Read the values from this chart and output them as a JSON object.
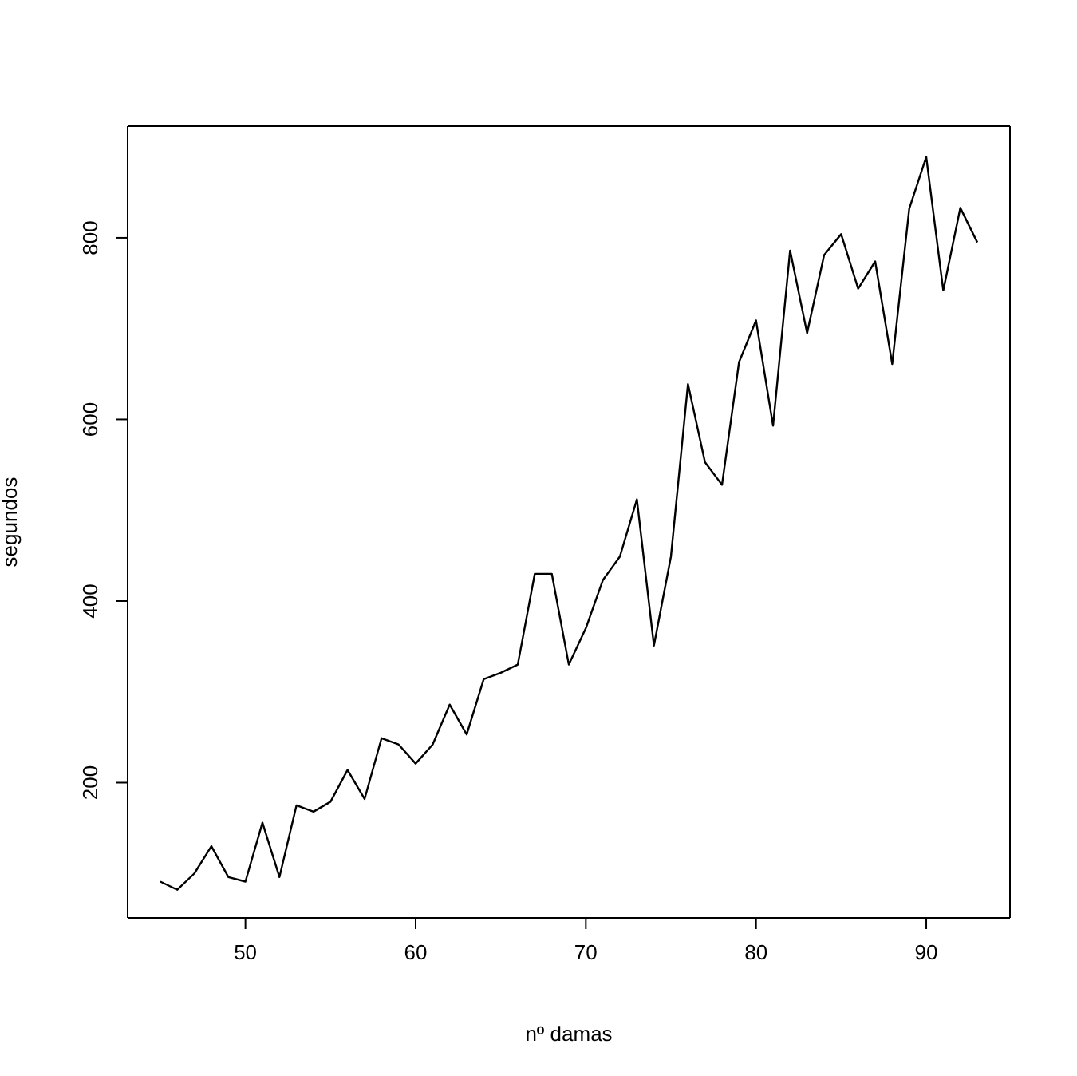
{
  "chart_data": {
    "type": "line",
    "xlabel": "nº damas",
    "ylabel": "segundos",
    "x": [
      45,
      46,
      47,
      48,
      49,
      50,
      51,
      52,
      53,
      54,
      55,
      56,
      57,
      58,
      59,
      60,
      61,
      62,
      63,
      64,
      65,
      66,
      67,
      68,
      69,
      70,
      71,
      72,
      73,
      74,
      75,
      76,
      77,
      78,
      79,
      80,
      81,
      82,
      83,
      84,
      85,
      86,
      87,
      88,
      89,
      90,
      91,
      92,
      93
    ],
    "series": [
      {
        "color": "#000000",
        "values": [
          91,
          82,
          100,
          130,
          96,
          91,
          156,
          96,
          175,
          168,
          179,
          214,
          182,
          249,
          242,
          221,
          242,
          286,
          253,
          314,
          321,
          330,
          430,
          430,
          330,
          370,
          423,
          449,
          512,
          351,
          449,
          639,
          553,
          528,
          663,
          709,
          593,
          786,
          695,
          781,
          804,
          744,
          774,
          661,
          832,
          889,
          742,
          833,
          795
        ]
      }
    ],
    "xlim": [
      43.08,
      94.92
    ],
    "ylim": [
      51,
      923
    ],
    "xticks": [
      50,
      60,
      70,
      80,
      90
    ],
    "yticks": [
      200,
      400,
      600,
      800
    ],
    "marker": "none",
    "line_style": "solid"
  }
}
